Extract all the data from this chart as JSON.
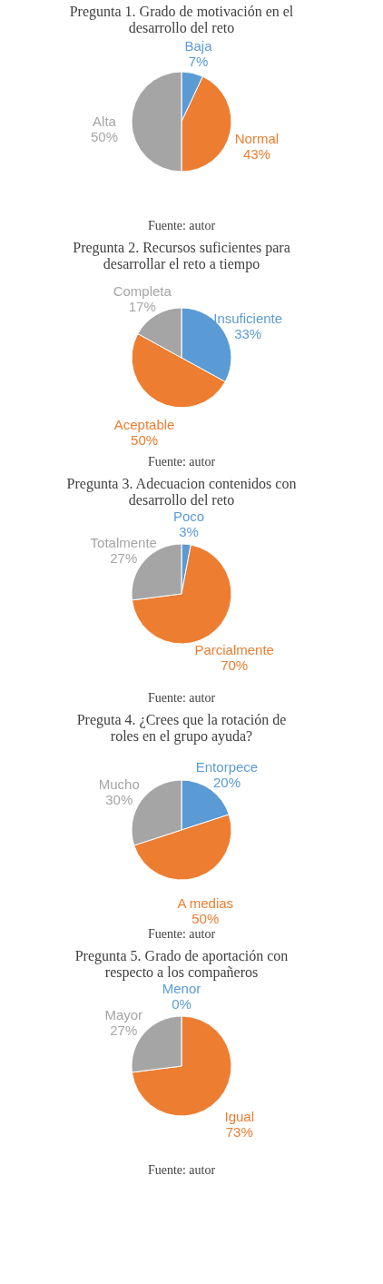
{
  "chart_data": [
    {
      "type": "pie",
      "title": "Pregunta 1. Grado de motivación en el desarrollo del reto",
      "categories": [
        "Baja",
        "Normal",
        "Alta"
      ],
      "values": [
        7,
        43,
        50
      ],
      "value_labels": [
        "7%",
        "43%",
        "50%"
      ],
      "colors": [
        "#5b9bd5",
        "#ed7d31",
        "#a5a5a5"
      ],
      "annotations": [
        "Fuente: autor"
      ],
      "legend": false
    },
    {
      "type": "pie",
      "title": "Pregunta 2. Recursos suficientes para desarrollar el reto a tiempo",
      "categories": [
        "Insuficiente",
        "Aceptable",
        "Completa"
      ],
      "values": [
        33,
        50,
        17
      ],
      "value_labels": [
        "33%",
        "50%",
        "17%"
      ],
      "colors": [
        "#5b9bd5",
        "#ed7d31",
        "#a5a5a5"
      ],
      "annotations": [
        "Fuente: autor"
      ],
      "legend": false
    },
    {
      "type": "pie",
      "title": "Pregunta 3. Adecuacion contenidos con desarrollo del reto",
      "categories": [
        "Poco",
        "Parcialmente",
        "Totalmente"
      ],
      "values": [
        3,
        70,
        27
      ],
      "value_labels": [
        "3%",
        "70%",
        "27%"
      ],
      "colors": [
        "#5b9bd5",
        "#ed7d31",
        "#a5a5a5"
      ],
      "annotations": [
        "Fuente: autor"
      ],
      "legend": false
    },
    {
      "type": "pie",
      "title": "Preguta 4. ¿Crees que la rotación de roles en el grupo ayuda?",
      "categories": [
        "Entorpece",
        "A medias",
        "Mucho"
      ],
      "values": [
        20,
        50,
        30
      ],
      "value_labels": [
        "20%",
        "50%",
        "30%"
      ],
      "colors": [
        "#5b9bd5",
        "#ed7d31",
        "#a5a5a5"
      ],
      "annotations": [
        "Fuente: autor"
      ],
      "legend": false
    },
    {
      "type": "pie",
      "title": "Pregunta 5. Grado de aportación con respecto a los  compañeros",
      "categories": [
        "Menor",
        "Igual",
        "Mayor"
      ],
      "values": [
        0,
        73,
        27
      ],
      "value_labels": [
        "0%",
        "73%",
        "27%"
      ],
      "colors": [
        "#5b9bd5",
        "#ed7d31",
        "#a5a5a5"
      ],
      "annotations": [
        "Fuente: autor"
      ],
      "legend": false
    }
  ]
}
